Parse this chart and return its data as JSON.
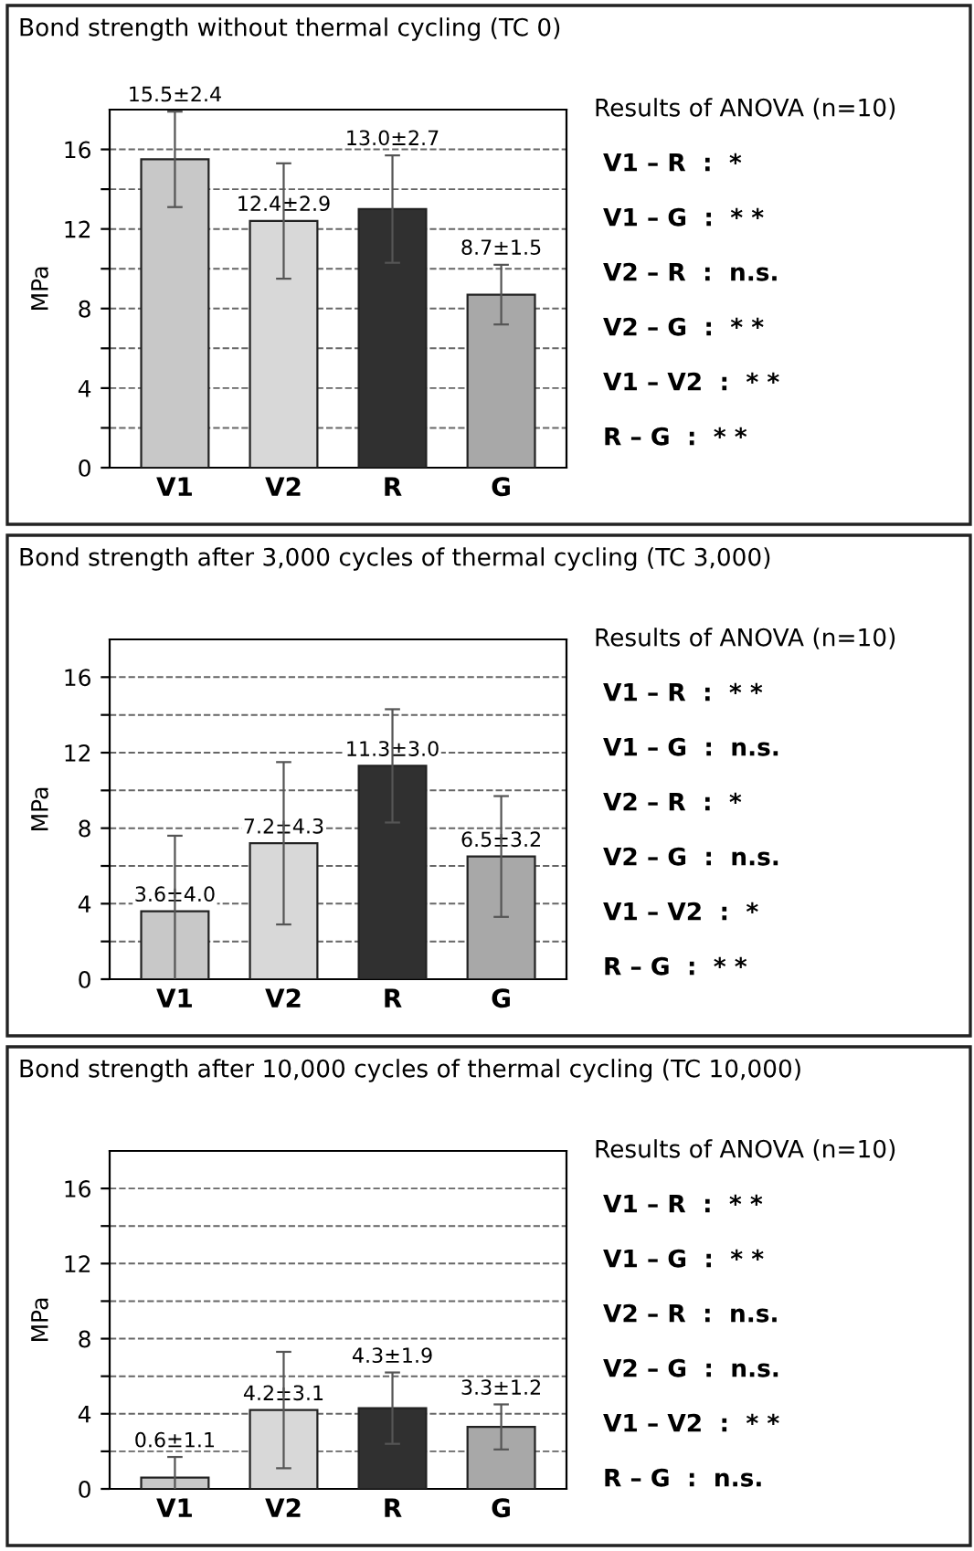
{
  "chart_data": [
    {
      "type": "bar",
      "title": "Bond strength without thermal cycling (TC 0)",
      "ylabel": "MPa",
      "categories": [
        "V1",
        "V2",
        "R",
        "G"
      ],
      "values": [
        15.5,
        12.4,
        13.0,
        8.7
      ],
      "errors": [
        2.4,
        2.9,
        2.7,
        1.5
      ],
      "value_labels": [
        "15.5±2.4",
        "12.4±2.9",
        "13.0±2.7",
        "8.7±1.5"
      ],
      "colors": [
        "#c8c8c8",
        "#d8d8d8",
        "#303030",
        "#a8a8a8"
      ],
      "ylim": [
        0,
        18
      ],
      "yticks": [
        0,
        {
          "value": 2,
          "label": null
        },
        4,
        {
          "value": 6,
          "label": null
        },
        8,
        {
          "value": 10,
          "label": null
        },
        12,
        {
          "value": 14,
          "label": null
        },
        16
      ],
      "grid": "y",
      "annotations": [
        "Results of ANOVA (n=10)",
        "V1 – R  :  *",
        "V1 – G  :  * *",
        "V2 – R  :  n.s.",
        "V2 – G  :  * *",
        "V1 – V2  :  * *",
        "R – G  :  * *"
      ]
    },
    {
      "type": "bar",
      "title": "Bond strength after 3,000 cycles of thermal cycling (TC 3,000)",
      "ylabel": "MPa",
      "categories": [
        "V1",
        "V2",
        "R",
        "G"
      ],
      "values": [
        3.6,
        7.2,
        11.3,
        6.5
      ],
      "errors": [
        4.0,
        4.3,
        3.0,
        3.2
      ],
      "value_labels": [
        "3.6±4.0",
        "7.2±4.3",
        "11.3±3.0",
        "6.5±3.2"
      ],
      "colors": [
        "#c8c8c8",
        "#d8d8d8",
        "#303030",
        "#a8a8a8"
      ],
      "ylim": [
        0,
        18
      ],
      "yticks": [
        0,
        {
          "value": 2,
          "label": null
        },
        4,
        {
          "value": 6,
          "label": null
        },
        8,
        {
          "value": 10,
          "label": null
        },
        12,
        {
          "value": 14,
          "label": null
        },
        16
      ],
      "grid": "y",
      "annotations": [
        "Results of ANOVA (n=10)",
        "V1 – R  :  * *",
        "V1 – G  :  n.s.",
        "V2 – R  :  *",
        "V2 – G  :  n.s.",
        "V1 – V2  :  *",
        "R – G  :  * *"
      ]
    },
    {
      "type": "bar",
      "title": "Bond strength after 10,000 cycles of thermal cycling (TC 10,000)",
      "ylabel": "MPa",
      "categories": [
        "V1",
        "V2",
        "R",
        "G"
      ],
      "values": [
        0.6,
        4.2,
        4.3,
        3.3
      ],
      "errors": [
        1.1,
        3.1,
        1.9,
        1.2
      ],
      "value_labels": [
        "0.6±1.1",
        "4.2±3.1",
        "4.3±1.9",
        "3.3±1.2"
      ],
      "colors": [
        "#c8c8c8",
        "#d8d8d8",
        "#303030",
        "#a8a8a8"
      ],
      "ylim": [
        0,
        18
      ],
      "yticks": [
        0,
        {
          "value": 2,
          "label": null
        },
        4,
        {
          "value": 6,
          "label": null
        },
        8,
        {
          "value": 10,
          "label": null
        },
        12,
        {
          "value": 14,
          "label": null
        },
        16
      ],
      "grid": "y",
      "annotations": [
        "Results of ANOVA (n=10)",
        "V1 – R  :  * *",
        "V1 – G  :  * *",
        "V2 – R  :  n.s.",
        "V2 – G  :  n.s.",
        "V1 – V2  :  * *",
        "R – G  :  n.s."
      ]
    }
  ]
}
